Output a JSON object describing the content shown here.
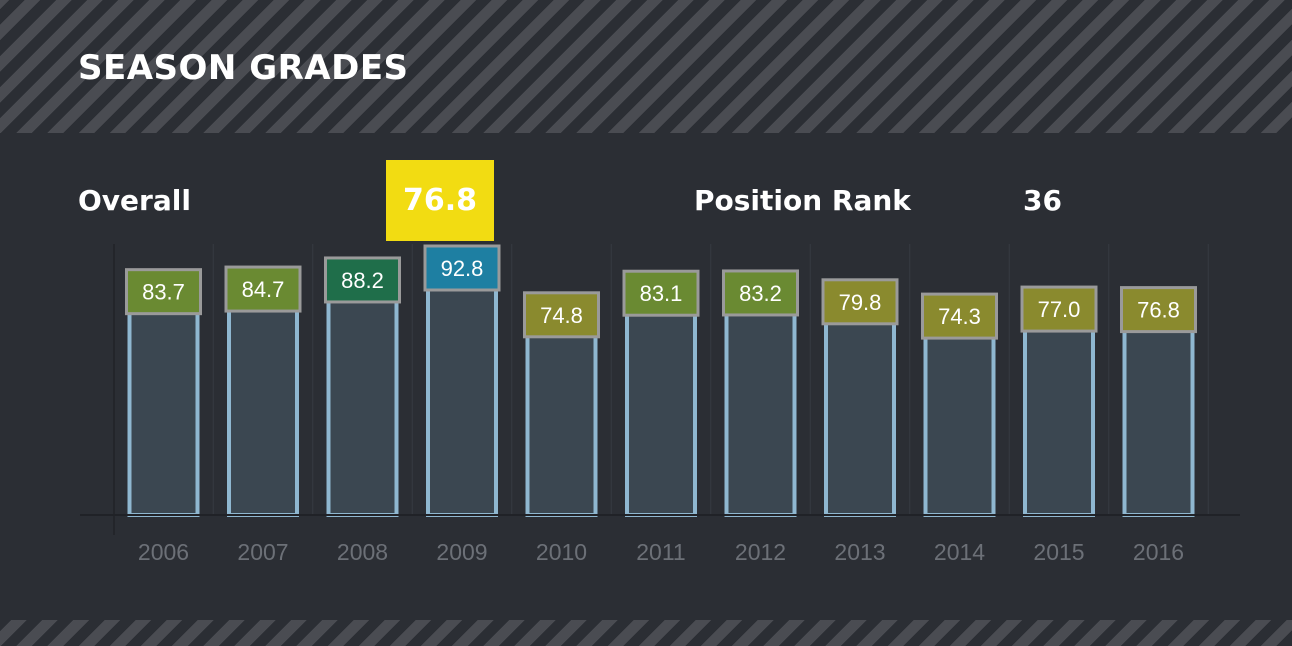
{
  "header": {
    "title": "SEASON GRADES"
  },
  "summary": {
    "overall_label": "Overall",
    "overall_value": "76.8",
    "rank_label": "Position Rank",
    "rank_value": "36"
  },
  "colors": {
    "highlight": "#f2dc12",
    "elite": "#1e7fa2",
    "high": "#1f6e4a",
    "good": "#6a8a32",
    "average": "#8a8a2e",
    "bar_fill": "#3b4751",
    "bar_border": "#8fb7d0"
  },
  "chart_data": {
    "type": "bar",
    "categories": [
      "2006",
      "2007",
      "2008",
      "2009",
      "2010",
      "2011",
      "2012",
      "2013",
      "2014",
      "2015",
      "2016"
    ],
    "values": [
      83.7,
      84.7,
      88.2,
      92.8,
      74.8,
      83.1,
      83.2,
      79.8,
      74.3,
      77.0,
      76.8
    ],
    "labels": [
      "83.7",
      "84.7",
      "88.2",
      "92.8",
      "74.8",
      "83.1",
      "83.2",
      "79.8",
      "74.3",
      "77.0",
      "76.8"
    ],
    "grade_tiers": [
      "good",
      "good",
      "high",
      "elite",
      "average",
      "good",
      "good",
      "average",
      "average",
      "average",
      "average"
    ],
    "title": "",
    "xlabel": "",
    "ylabel": "",
    "ylim": [
      0,
      100
    ],
    "grid": true,
    "legend": "none"
  }
}
